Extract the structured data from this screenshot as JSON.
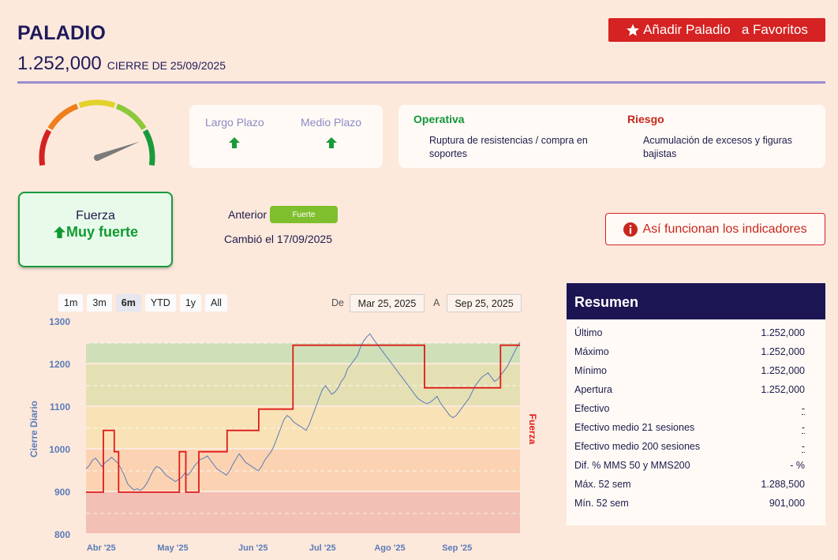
{
  "header": {
    "title": "PALADIO",
    "price": "1.252,000",
    "closing": "CIERRE DE 25/09/2025",
    "fav_button": "Añadir Paladio   a Favoritos"
  },
  "gauge": {
    "level": 0.85
  },
  "terms": [
    {
      "label": "Largo Plazo",
      "direction": "up"
    },
    {
      "label": "Medio Plazo",
      "direction": "up"
    }
  ],
  "operativa": {
    "title": "Operativa",
    "text": "Ruptura de resistencias / compra en soportes"
  },
  "riesgo": {
    "title": "Riesgo",
    "text": "Acumulación de excesos y figuras bajistas"
  },
  "force": {
    "label": "Fuerza",
    "value": "Muy fuerte"
  },
  "anterior": {
    "label": "Anterior",
    "badge": "Fuerte"
  },
  "changed": "Cambió el 17/09/2025",
  "info_button": "Así funcionan los indicadores",
  "range": {
    "buttons": [
      "1m",
      "3m",
      "6m",
      "YTD",
      "1y",
      "All"
    ],
    "active": "6m",
    "from_label": "De",
    "from": "Mar 25, 2025",
    "to_label": "A",
    "to": "Sep 25, 2025"
  },
  "chart_data": {
    "type": "line",
    "ylabel": "Cierre Diario",
    "y2label": "Fuerza",
    "ylim": [
      800,
      1300
    ],
    "yticks": [
      "1300",
      "1200",
      "1100",
      "1000",
      "900",
      "800"
    ],
    "xticks": [
      "Abr '25",
      "May '25",
      "Jun '25",
      "Jul '25",
      "Ago '25",
      "Sep '25"
    ],
    "zones": [
      {
        "from": 800,
        "to": 900,
        "color": "#f2c0b4"
      },
      {
        "from": 900,
        "to": 1000,
        "color": "#fbd3b2"
      },
      {
        "from": 1000,
        "to": 1100,
        "color": "#f8e2b6"
      },
      {
        "from": 1100,
        "to": 1200,
        "color": "#e5e0b4"
      },
      {
        "from": 1200,
        "to": 1250,
        "color": "#cfe0b9"
      }
    ],
    "series": [
      {
        "color": "#5a7bb8",
        "values": [
          955,
          962,
          975,
          980,
          970,
          960,
          970,
          975,
          982,
          975,
          968,
          955,
          940,
          920,
          912,
          905,
          908,
          904,
          910,
          920,
          935,
          950,
          960,
          958,
          950,
          940,
          935,
          930,
          925,
          930,
          935,
          945,
          940,
          950,
          962,
          970,
          978,
          980,
          985,
          975,
          965,
          955,
          950,
          945,
          940,
          950,
          965,
          978,
          990,
          980,
          970,
          965,
          960,
          955,
          950,
          960,
          975,
          985,
          995,
          1010,
          1030,
          1050,
          1070,
          1080,
          1075,
          1065,
          1060,
          1055,
          1050,
          1045,
          1060,
          1080,
          1100,
          1120,
          1140,
          1150,
          1140,
          1130,
          1135,
          1145,
          1160,
          1170,
          1190,
          1200,
          1210,
          1220,
          1240,
          1255,
          1265,
          1272,
          1260,
          1250,
          1240,
          1230,
          1220,
          1210,
          1200,
          1190,
          1180,
          1170,
          1160,
          1150,
          1140,
          1130,
          1120,
          1115,
          1110,
          1108,
          1112,
          1118,
          1125,
          1110,
          1100,
          1090,
          1080,
          1075,
          1080,
          1090,
          1100,
          1110,
          1120,
          1135,
          1150,
          1160,
          1170,
          1175,
          1180,
          1170,
          1160,
          1165,
          1175,
          1185,
          1195,
          1210,
          1225,
          1240,
          1252
        ]
      }
    ],
    "strength_steps": [
      {
        "from": 0,
        "to": 0.04,
        "level": 900
      },
      {
        "from": 0.04,
        "to": 0.065,
        "level": 1045
      },
      {
        "from": 0.065,
        "to": 0.075,
        "level": 995
      },
      {
        "from": 0.075,
        "to": 0.215,
        "level": 900
      },
      {
        "from": 0.215,
        "to": 0.23,
        "level": 995
      },
      {
        "from": 0.23,
        "to": 0.26,
        "level": 900
      },
      {
        "from": 0.26,
        "to": 0.325,
        "level": 995
      },
      {
        "from": 0.325,
        "to": 0.398,
        "level": 1045
      },
      {
        "from": 0.398,
        "to": 0.477,
        "level": 1095
      },
      {
        "from": 0.477,
        "to": 0.78,
        "level": 1245
      },
      {
        "from": 0.78,
        "to": 0.955,
        "level": 1145
      },
      {
        "from": 0.955,
        "to": 1.0,
        "level": 1245
      }
    ]
  },
  "summary": {
    "title": "Resumen",
    "rows": [
      {
        "label": "Último",
        "value": "1.252,000"
      },
      {
        "label": "Máximo",
        "value": "1.252,000"
      },
      {
        "label": "Mínimo",
        "value": "1.252,000"
      },
      {
        "label": "Apertura",
        "value": "1.252,000"
      },
      {
        "label": "Efectivo",
        "value": "-",
        "dotted": true
      },
      {
        "label": "Efectivo medio 21 sesiones",
        "value": "-",
        "dotted": true
      },
      {
        "label": "Efectivo medio 200 sesiones",
        "value": "-",
        "dotted": true
      },
      {
        "label": "Dif. % MMS 50 y MMS200",
        "value": "- %"
      },
      {
        "label": "Máx. 52 sem",
        "value": "1.288,500"
      },
      {
        "label": "Mín. 52 sem",
        "value": "901,000"
      }
    ]
  }
}
